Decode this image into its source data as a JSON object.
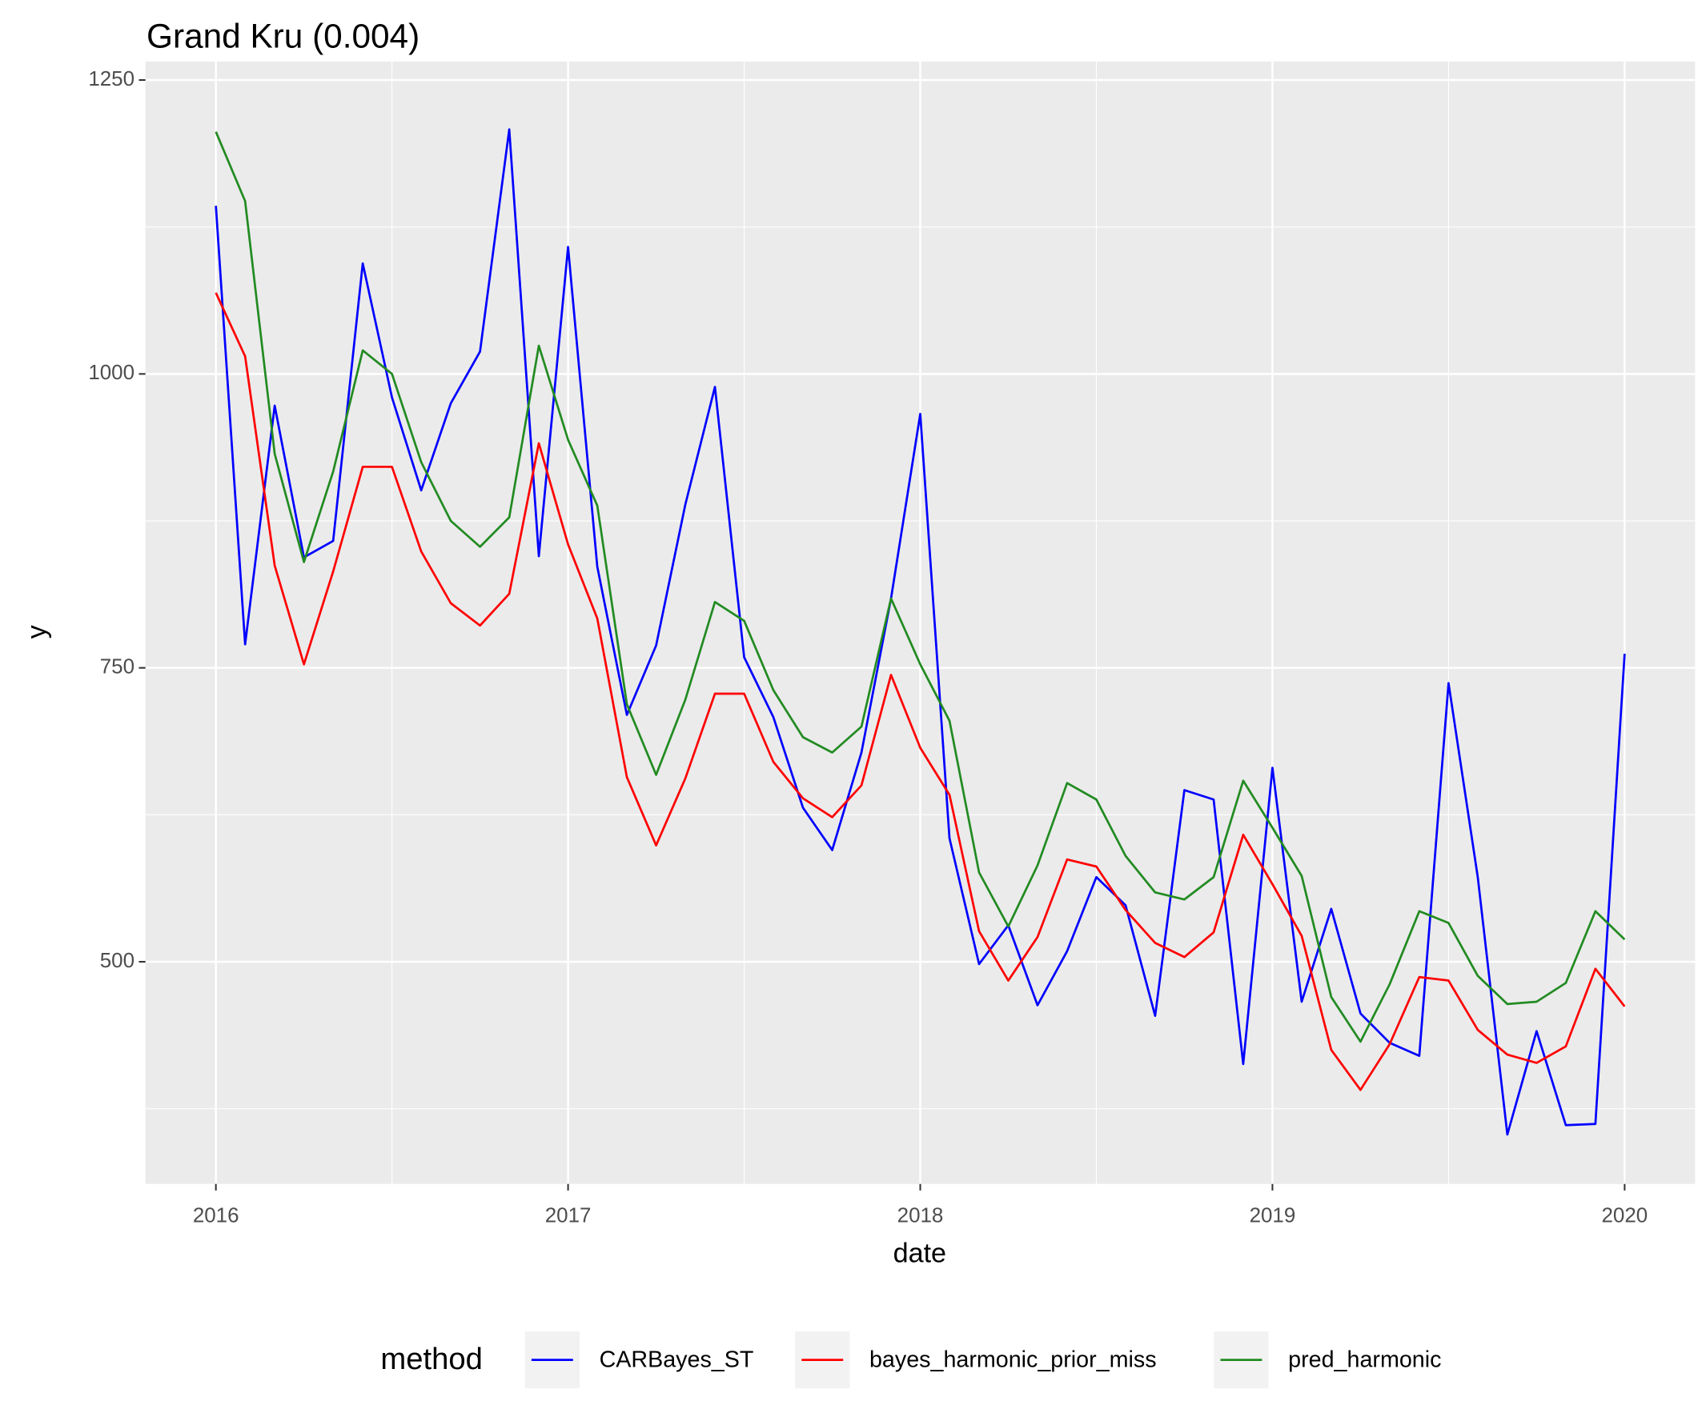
{
  "chart_data": {
    "type": "line",
    "title": "Grand Kru (0.004)",
    "x_label": "date",
    "y_label": "y",
    "legend_title": "method",
    "legend_position": "bottom",
    "grid": true,
    "xlim": [
      2015.8,
      2020.2
    ],
    "xticks": [
      2016,
      2017,
      2018,
      2019,
      2020
    ],
    "ylim": [
      311,
      1250
    ],
    "yticks": [
      500,
      750,
      1000,
      1250
    ],
    "x": [
      2016,
      2016.083,
      2016.167,
      2016.25,
      2016.333,
      2016.417,
      2016.5,
      2016.583,
      2016.667,
      2016.75,
      2016.833,
      2016.917,
      2017,
      2017.083,
      2017.167,
      2017.25,
      2017.333,
      2017.417,
      2017.5,
      2017.583,
      2017.667,
      2017.75,
      2017.833,
      2017.917,
      2018,
      2018.083,
      2018.167,
      2018.25,
      2018.333,
      2018.417,
      2018.5,
      2018.583,
      2018.667,
      2018.75,
      2018.833,
      2018.917,
      2019,
      2019.083,
      2019.167,
      2019.25,
      2019.333,
      2019.417,
      2019.5,
      2019.583,
      2019.667,
      2019.75,
      2019.833,
      2019.917,
      2020
    ],
    "series": [
      {
        "name": "CARBayes_ST",
        "color": "#0000ff",
        "values": [
          1143,
          770,
          973,
          844,
          858,
          1094,
          980,
          901,
          975,
          1019,
          1208,
          845,
          1108,
          836,
          710,
          769,
          889,
          989,
          759,
          708,
          631,
          595,
          678,
          809,
          966,
          605,
          498,
          531,
          463,
          509,
          572,
          548,
          454,
          646,
          638,
          413,
          665,
          466,
          545,
          456,
          431,
          420,
          737,
          572,
          353,
          441,
          361,
          362,
          762
        ]
      },
      {
        "name": "bayes_harmonic_prior_miss",
        "color": "#ff0000",
        "values": [
          1069,
          1015,
          837,
          753,
          832,
          921,
          921,
          849,
          805,
          786,
          813,
          941,
          855,
          792,
          657,
          599,
          656,
          728,
          728,
          670,
          639,
          623,
          650,
          744,
          682,
          642,
          526,
          484,
          521,
          587,
          581,
          544,
          516,
          504,
          525,
          608,
          566,
          522,
          425,
          391,
          430,
          487,
          484,
          442,
          421,
          414,
          428,
          494,
          462
        ]
      },
      {
        "name": "pred_harmonic",
        "color": "#228b22",
        "values": [
          1206,
          1147,
          932,
          840,
          917,
          1020,
          1000,
          925,
          875,
          853,
          878,
          1024,
          944,
          888,
          719,
          659,
          723,
          806,
          790,
          731,
          691,
          678,
          700,
          809,
          753,
          705,
          576,
          530,
          582,
          652,
          638,
          590,
          559,
          553,
          572,
          654,
          614,
          573,
          470,
          432,
          481,
          543,
          533,
          488,
          464,
          466,
          482,
          543,
          519
        ]
      }
    ]
  }
}
